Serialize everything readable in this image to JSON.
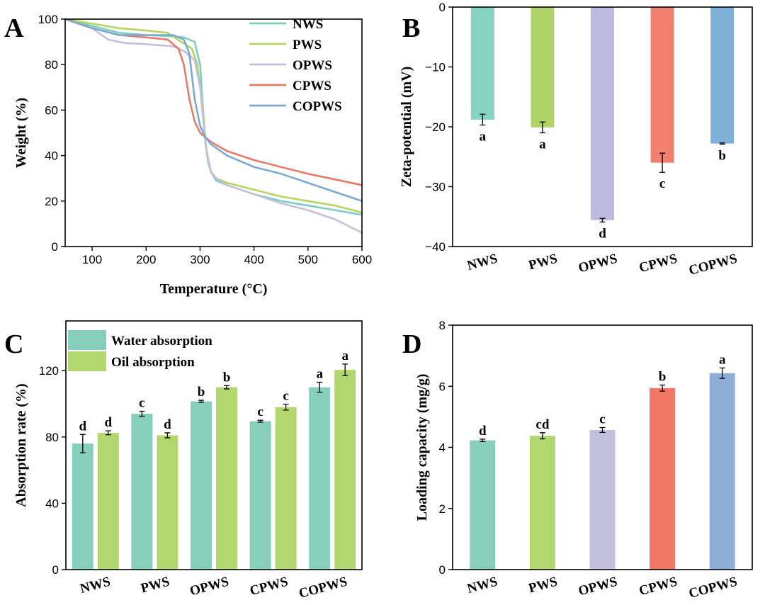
{
  "chart_data": [
    {
      "panel": "A",
      "type": "line",
      "xlabel": "Temperature (°C)",
      "ylabel": "Weight (%)",
      "xlim": [
        50,
        600
      ],
      "ylim": [
        0,
        100
      ],
      "xticks": [
        100,
        200,
        300,
        400,
        500,
        600
      ],
      "yticks": [
        0,
        20,
        40,
        60,
        80,
        100
      ],
      "legend_position": "top-right",
      "series": [
        {
          "name": "NWS",
          "color": "#7ccfc0",
          "x": [
            50,
            100,
            150,
            200,
            240,
            270,
            290,
            300,
            305,
            310,
            315,
            320,
            330,
            350,
            400,
            450,
            500,
            550,
            600
          ],
          "y": [
            100,
            97,
            94,
            93,
            92.5,
            92,
            90,
            80,
            62,
            45,
            37,
            33,
            29,
            27,
            23,
            20,
            18,
            16,
            14
          ]
        },
        {
          "name": "PWS",
          "color": "#b6d55f",
          "x": [
            50,
            100,
            150,
            200,
            240,
            265,
            285,
            295,
            305,
            312,
            320,
            330,
            350,
            400,
            450,
            500,
            550,
            600
          ],
          "y": [
            100,
            98,
            96,
            95,
            94,
            90,
            87,
            80,
            60,
            42,
            33,
            30,
            28,
            25,
            22,
            20,
            18,
            15
          ]
        },
        {
          "name": "OPWS",
          "color": "#c2c0dd",
          "x": [
            50,
            100,
            130,
            160,
            200,
            250,
            270,
            290,
            300,
            310,
            320,
            330,
            350,
            400,
            450,
            500,
            550,
            600
          ],
          "y": [
            100,
            96,
            91,
            89.5,
            89,
            88,
            86,
            82,
            70,
            45,
            33,
            30,
            27,
            23,
            19,
            16,
            12,
            6
          ]
        },
        {
          "name": "CPWS",
          "color": "#e97968",
          "x": [
            50,
            100,
            150,
            200,
            240,
            260,
            270,
            280,
            290,
            300,
            320,
            350,
            400,
            450,
            500,
            550,
            600
          ],
          "y": [
            100,
            96,
            93,
            92,
            91,
            87,
            80,
            65,
            55,
            50,
            46,
            42,
            38,
            35,
            32,
            29.5,
            27
          ]
        },
        {
          "name": "COPWS",
          "color": "#7aa9d1",
          "x": [
            50,
            100,
            150,
            200,
            250,
            270,
            280,
            290,
            300,
            310,
            320,
            350,
            400,
            450,
            500,
            550,
            600
          ],
          "y": [
            100,
            96,
            93,
            93,
            93,
            91,
            85,
            65,
            53,
            48,
            45,
            40,
            35,
            32,
            28,
            24,
            20
          ]
        }
      ]
    },
    {
      "panel": "B",
      "type": "bar",
      "ylabel": "Zeta-potential (mV)",
      "ylim": [
        -40,
        0
      ],
      "yticks": [
        0,
        -10,
        -20,
        -30,
        -40
      ],
      "categories": [
        "NWS",
        "PWS",
        "OPWS",
        "CPWS",
        "COPWS"
      ],
      "values": [
        -18.8,
        -20.1,
        -35.6,
        -26,
        -22.8
      ],
      "errors": [
        0.9,
        0.9,
        0.3,
        1.6,
        0.1
      ],
      "significance": [
        "a",
        "a",
        "d",
        "c",
        "b"
      ],
      "colors": [
        "#86d3c1",
        "#b0d367",
        "#bcbbdf",
        "#f2806e",
        "#7fb1d8"
      ]
    },
    {
      "panel": "C",
      "type": "bar",
      "ylabel": "Absorption rate (%)",
      "ylim": [
        0,
        150
      ],
      "yticks": [
        0,
        40,
        80,
        120
      ],
      "categories": [
        "NWS",
        "PWS",
        "OPWS",
        "CPWS",
        "COPWS"
      ],
      "legend_position": "top-left",
      "series": [
        {
          "name": "Water absorption",
          "color": "#86cfbb",
          "values": [
            76,
            94,
            101.5,
            89.5,
            110
          ],
          "errors": [
            5.5,
            1.5,
            0.6,
            0.6,
            3
          ],
          "significance": [
            "d",
            "c",
            "b",
            "c",
            "a"
          ]
        },
        {
          "name": "Oil absorption",
          "color": "#b2d76e",
          "values": [
            82.5,
            81,
            110,
            98,
            120.5
          ],
          "errors": [
            1.2,
            1.5,
            1,
            1.8,
            3.5
          ],
          "significance": [
            "d",
            "d",
            "b",
            "c",
            "a"
          ]
        }
      ]
    },
    {
      "panel": "D",
      "type": "bar",
      "ylabel": "Loading capacity (mg/g)",
      "ylim": [
        0,
        8
      ],
      "yticks": [
        0,
        2,
        4,
        6,
        8
      ],
      "categories": [
        "NWS",
        "PWS",
        "OPWS",
        "CPWS",
        "COPWS"
      ],
      "values": [
        4.23,
        4.38,
        4.57,
        5.94,
        6.43
      ],
      "errors": [
        0.04,
        0.1,
        0.08,
        0.1,
        0.17
      ],
      "significance": [
        "d",
        "cd",
        "c",
        "b",
        "a"
      ],
      "colors": [
        "#86cfbb",
        "#b2d76e",
        "#c2c0dd",
        "#f27866",
        "#8eaed8"
      ]
    }
  ]
}
